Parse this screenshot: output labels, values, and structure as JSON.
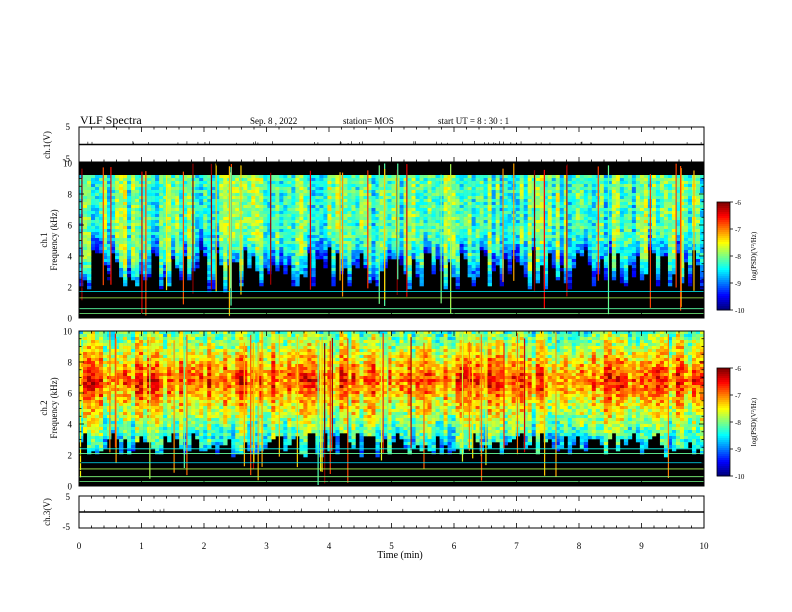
{
  "header": {
    "title": "VLF Spectra",
    "date": "Sep. 8 , 2022",
    "station": "station= MOS",
    "start": "start UT = 8 : 30 : 1"
  },
  "chart_data": [
    {
      "type": "line",
      "panel": "ch1-voltage",
      "ylabel": "ch.1(V)",
      "ylim": [
        -5,
        5
      ],
      "yticks": [
        "5",
        "-5"
      ],
      "x": [
        0,
        10
      ],
      "values": [
        0,
        0
      ],
      "xlim": [
        0,
        10
      ]
    },
    {
      "type": "heatmap",
      "panel": "ch1-spectrogram",
      "ylabel": "ch.1\nFrequency (kHz)",
      "ylabel_lines": [
        "ch.1",
        "Frequency (kHz)"
      ],
      "ylim": [
        0,
        10
      ],
      "yticks": [
        "0",
        "2",
        "4",
        "6",
        "8",
        "10"
      ],
      "xlim": [
        0,
        10
      ],
      "colorbar": {
        "label": "log(PSD)(V²/Hz)",
        "range": [
          -10,
          -6
        ],
        "ticks": [
          "-6",
          "-7",
          "-8",
          "-9",
          "-10"
        ]
      },
      "band_khz": [
        4.5,
        9.2
      ],
      "band_level": -8.2,
      "background_level": -10,
      "tone_lines_khz": [
        0.3,
        0.6,
        1.3,
        1.7
      ]
    },
    {
      "type": "heatmap",
      "panel": "ch2-spectrogram",
      "ylabel": "ch.2\nFrequency (kHz)",
      "ylabel_lines": [
        "ch.2",
        "Frequency (kHz)"
      ],
      "ylim": [
        0,
        10
      ],
      "yticks": [
        "0",
        "2",
        "4",
        "6",
        "8",
        "10"
      ],
      "xlim": [
        0,
        10
      ],
      "colorbar": {
        "label": "log(PSD)(V²/Hz)",
        "range": [
          -10,
          -6
        ],
        "ticks": [
          "-6",
          "-7",
          "-8",
          "-9",
          "-10"
        ]
      },
      "band_khz": [
        3.5,
        10
      ],
      "band_peak_khz": 6.8,
      "band_level": -6.8,
      "background_level": -10,
      "tone_lines_khz": [
        0.3,
        0.6,
        1.1,
        1.5,
        2.1,
        2.4
      ]
    },
    {
      "type": "line",
      "panel": "ch3-voltage",
      "ylabel": "ch.3(V)",
      "ylim": [
        -5,
        5
      ],
      "yticks": [
        "5",
        "-5"
      ],
      "x": [
        0,
        10
      ],
      "values": [
        0,
        0
      ],
      "xlim": [
        0,
        10
      ],
      "xlabel": "Time (min)",
      "xticks": [
        "0",
        "1",
        "2",
        "3",
        "4",
        "5",
        "6",
        "7",
        "8",
        "9",
        "10"
      ]
    }
  ]
}
